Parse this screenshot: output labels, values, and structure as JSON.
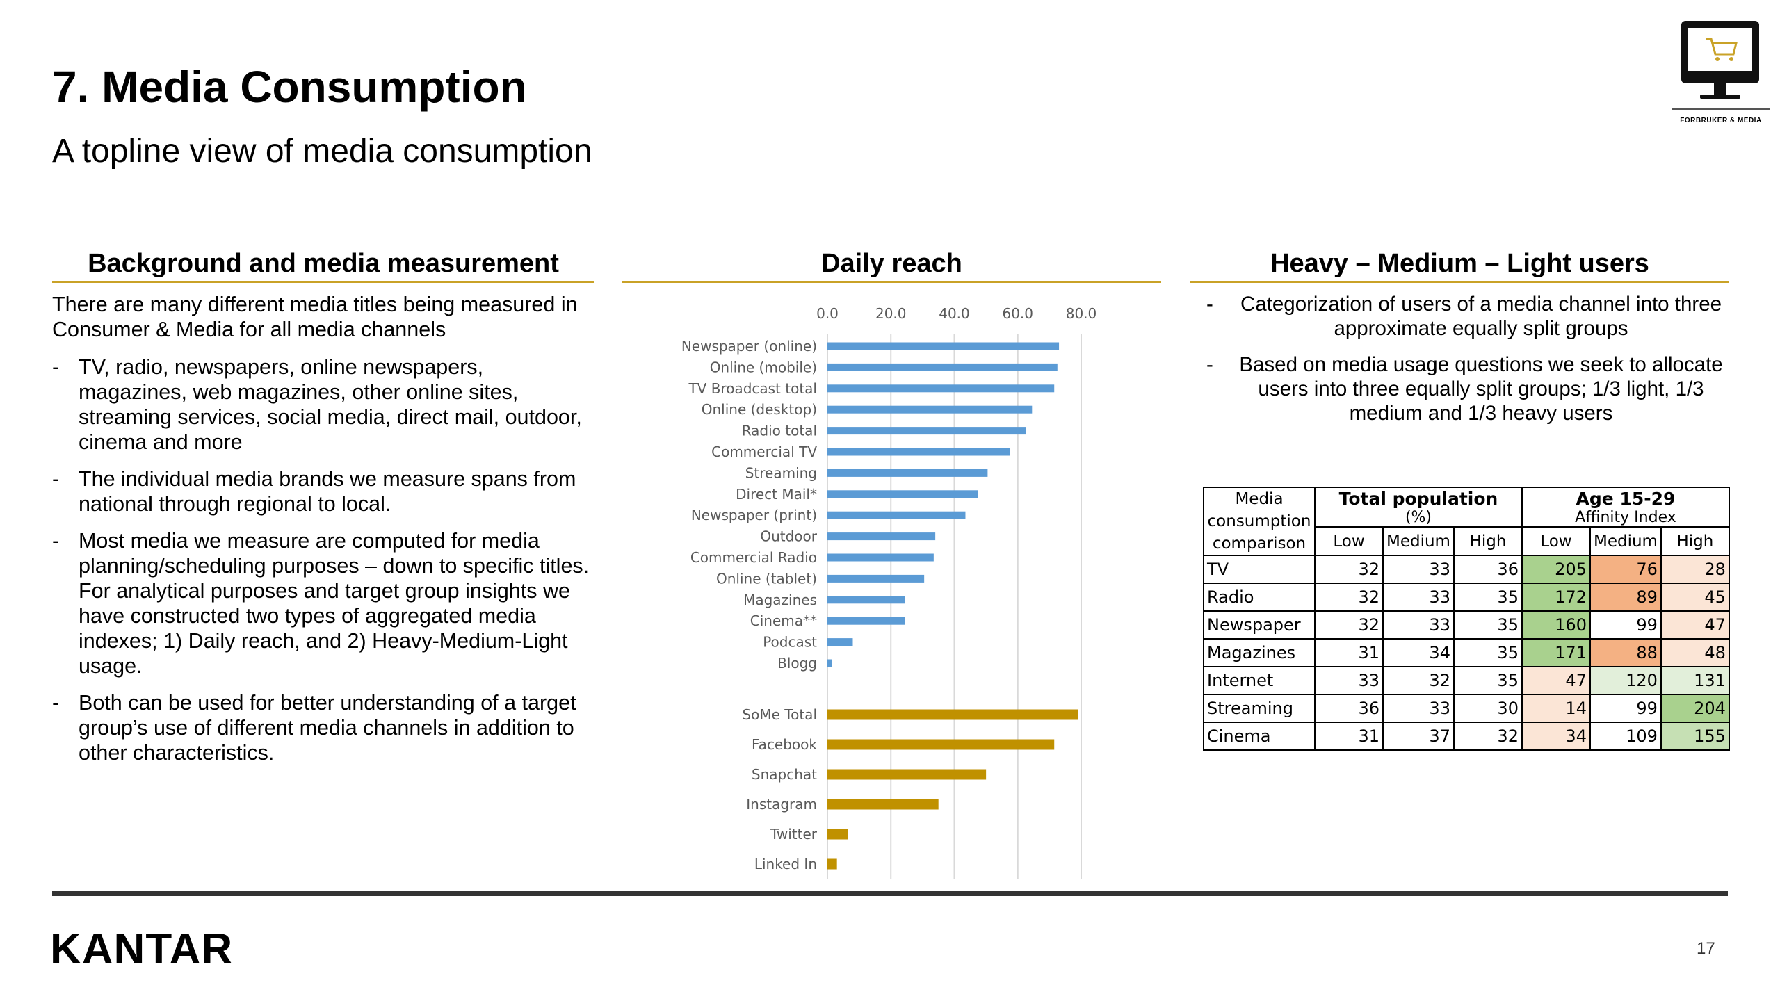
{
  "header": {
    "title": "7. Media Consumption",
    "subtitle": "A topline view of media consumption",
    "logo_caption": "FORBRUKER & MEDIA",
    "logo_icon": "cart-monitor-icon"
  },
  "background": {
    "heading": "Background and media measurement",
    "intro": "There are many different media titles being measured in Consumer & Media for all media channels",
    "bullets": [
      "TV, radio, newspapers, online newspapers, magazines, web magazines, other online sites, streaming services, social media, direct mail, outdoor, cinema and more",
      "The individual media brands we measure spans from national through regional to local.",
      "Most media we measure are computed for media planning/scheduling purposes – down to specific titles. For analytical purposes and target group insights we have constructed two types of aggregated media indexes; 1) Daily reach, and 2) Heavy-Medium-Light usage.",
      "Both can be used for better understanding of a target group’s use of different media channels in addition to other characteristics."
    ]
  },
  "reach": {
    "heading": "Daily reach"
  },
  "chart_data": {
    "type": "bar",
    "orientation": "horizontal",
    "title": "Daily reach",
    "xlim": [
      0,
      80
    ],
    "xticks": [
      "0.0",
      "20.0",
      "40.0",
      "60.0",
      "80.0"
    ],
    "grid": true,
    "series": [
      {
        "color": "#5b9bd5",
        "categories": [
          "Newspaper (online)",
          "Online (mobile)",
          "TV Broadcast total",
          "Online (desktop)",
          "Radio total",
          "Commercial TV",
          "Streaming",
          "Direct Mail*",
          "Newspaper (print)",
          "Outdoor",
          "Commercial Radio",
          "Online (tablet)",
          "Magazines",
          "Cinema**",
          "Podcast",
          "Blogg"
        ],
        "values": [
          73,
          72.5,
          71.5,
          64.5,
          62.5,
          57.5,
          50.5,
          47.5,
          43.5,
          34,
          33.5,
          30.5,
          24.5,
          24.5,
          8,
          1.5
        ]
      },
      {
        "color": "#c09100",
        "categories": [
          "SoMe Total",
          "Facebook",
          "Snapchat",
          "Instagram",
          "Twitter",
          "Linked In"
        ],
        "values": [
          79,
          71.5,
          50,
          35,
          6.5,
          3
        ]
      }
    ]
  },
  "hml": {
    "heading": "Heavy – Medium – Light users",
    "bullets": [
      "Categorization of users of a media channel into three approximate equally split groups",
      "Based on media usage questions we seek to allocate users into three equally split groups; 1/3 light, 1/3 medium and 1/3 heavy users"
    ],
    "table": {
      "corner": "Media consumption comparison",
      "group1_title": "Total population",
      "group1_sub": "(%)",
      "group2_title": "Age 15-29",
      "group2_sub": "Affinity Index",
      "cols": [
        "Low",
        "Medium",
        "High",
        "Low",
        "Medium",
        "High"
      ],
      "rows": [
        {
          "label": "TV",
          "values": [
            32,
            33,
            36,
            205,
            76,
            28
          ],
          "colors": [
            "#ffffff",
            "#ffffff",
            "#ffffff",
            "#a9d18e",
            "#f4b183",
            "#fbe5d6"
          ]
        },
        {
          "label": "Radio",
          "values": [
            32,
            33,
            35,
            172,
            89,
            45
          ],
          "colors": [
            "#ffffff",
            "#ffffff",
            "#ffffff",
            "#a9d18e",
            "#f4b183",
            "#fbe5d6"
          ]
        },
        {
          "label": "Newspaper",
          "values": [
            32,
            33,
            35,
            160,
            99,
            47
          ],
          "colors": [
            "#ffffff",
            "#ffffff",
            "#ffffff",
            "#a9d18e",
            "#ffffff",
            "#fbe5d6"
          ]
        },
        {
          "label": "Magazines",
          "values": [
            31,
            34,
            35,
            171,
            88,
            48
          ],
          "colors": [
            "#ffffff",
            "#ffffff",
            "#ffffff",
            "#a9d18e",
            "#f4b183",
            "#fbe5d6"
          ]
        },
        {
          "label": "Internet",
          "values": [
            33,
            32,
            35,
            47,
            120,
            131
          ],
          "colors": [
            "#ffffff",
            "#ffffff",
            "#ffffff",
            "#fbe5d6",
            "#e2efda",
            "#e2efda"
          ]
        },
        {
          "label": "Streaming",
          "values": [
            36,
            33,
            30,
            14,
            99,
            204
          ],
          "colors": [
            "#ffffff",
            "#ffffff",
            "#ffffff",
            "#fbe5d6",
            "#ffffff",
            "#a9d18e"
          ]
        },
        {
          "label": "Cinema",
          "values": [
            31,
            37,
            32,
            34,
            109,
            155
          ],
          "colors": [
            "#ffffff",
            "#ffffff",
            "#ffffff",
            "#fbe5d6",
            "#ffffff",
            "#c6e0b4"
          ]
        }
      ]
    }
  },
  "footer": {
    "brand": "KANTAR",
    "page_number": "17"
  }
}
